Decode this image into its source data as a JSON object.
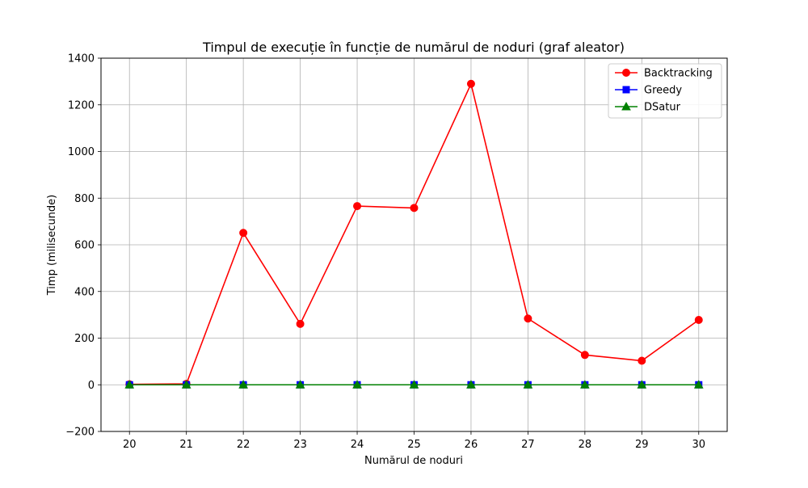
{
  "chart_data": {
    "type": "line",
    "title": "Timpul de execuție în funcție de numărul de noduri (graf aleator)",
    "xlabel": "Numărul de noduri",
    "ylabel": "Timp (milisecunde)",
    "x": [
      20,
      21,
      22,
      23,
      24,
      25,
      26,
      27,
      28,
      29,
      30
    ],
    "xlim": [
      19.5,
      30.5
    ],
    "ylim": [
      -200,
      1400
    ],
    "xticks": [
      20,
      21,
      22,
      23,
      24,
      25,
      26,
      27,
      28,
      29,
      30
    ],
    "yticks": [
      -200,
      0,
      200,
      400,
      600,
      800,
      1000,
      1200,
      1400
    ],
    "grid": true,
    "legend_position": "top-right",
    "series": [
      {
        "name": "Backtracking",
        "color": "#ff0000",
        "marker": "circle",
        "values": [
          2,
          4,
          651,
          261,
          766,
          758,
          1290,
          284,
          128,
          103,
          278
        ]
      },
      {
        "name": "Greedy",
        "color": "#0000ff",
        "marker": "square",
        "values": [
          0,
          0,
          0,
          0,
          0,
          0,
          0,
          0,
          0,
          0,
          0
        ]
      },
      {
        "name": "DSatur",
        "color": "#008000",
        "marker": "triangle",
        "values": [
          0,
          0,
          0,
          0,
          0,
          0,
          0,
          0,
          0,
          0,
          0
        ]
      }
    ]
  }
}
